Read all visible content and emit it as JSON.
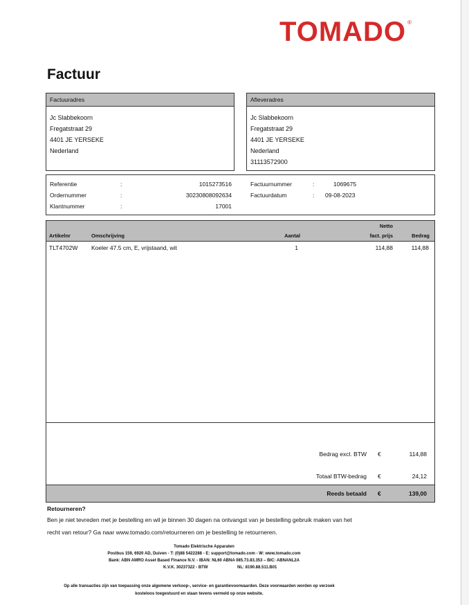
{
  "logo": {
    "text": "TOMADO",
    "mark": "®",
    "color": "#d42a2a"
  },
  "title": "Factuur",
  "billing": {
    "label": "Factuuradres",
    "lines": [
      "Jc  Slabbekoorn",
      "Fregatstraat 29",
      "4401 JE YERSEKE",
      "Nederland"
    ]
  },
  "shipping": {
    "label": "Afleveradres",
    "lines": [
      "Jc Slabbekoorn",
      "Fregatstraat 29",
      "4401 JE YERSEKE",
      "Nederland",
      "31113572900"
    ]
  },
  "info": {
    "left": [
      {
        "label": "Referentie",
        "value": "1015273516"
      },
      {
        "label": "Ordernummer",
        "value": "30230808092634"
      },
      {
        "label": "Klantnummer",
        "value": "17001"
      }
    ],
    "right": [
      {
        "label": "Factuurnummer",
        "value": "1069675"
      },
      {
        "label": "Factuurdatum",
        "value": "09-08-2023"
      }
    ],
    "sep": ":"
  },
  "table": {
    "headers": {
      "artikelnr": "Artikelnr",
      "omschrijving": "Omschrijving",
      "aantal": "Aantal",
      "prijs_top": "Netto",
      "prijs": "fact. prijs",
      "bedrag": "Bedrag"
    },
    "rows": [
      {
        "artikelnr": "TLT4702W",
        "omschrijving": "Koeler 47.5 cm, E, vrijstaand, wit",
        "aantal": "1",
        "prijs": "114,88",
        "bedrag": "114,88"
      }
    ]
  },
  "totals": {
    "currency": "€",
    "excl_label": "Bedrag excl. BTW",
    "excl": "114,88",
    "btw_label": "Totaal BTW-bedrag",
    "btw": "24,12",
    "paid_label": "Reeds betaald",
    "paid": "139,00"
  },
  "returns": {
    "heading": "Retourneren?",
    "line1": "Ben je niet tevreden met je bestelling en wil je binnen 30 dagen na ontvangst van je bestelling gebruik maken van het",
    "line2": "recht van retour? Ga naar www.tomado.com/retourneren om je bestelling te retourneren."
  },
  "footer": {
    "company": "Tomado Elektrische Apparaten",
    "contact": "Postbus 159, 6920 AD, Duiven - T: (0)88 5422288 - E: support@tomado.com - W: www.tomado.com",
    "bank": "Bank: ABN AMRO Asset Based Finance N.V. - IBAN: NL60 ABNA 085.73.83.353 – BIC: ABNANL2A",
    "kvk": "K.V.K. 30237322 - BTW",
    "vat": "NL: 8190.88.511.B01",
    "terms1": "Op alle transacties zijn van toepassing onze algemene verkoop-, service- en garantievoorwaarden. Deze voorwaarden worden op verzoek",
    "terms2": "kosteloos toegestuurd en staan tevens vermeld op onze website."
  }
}
